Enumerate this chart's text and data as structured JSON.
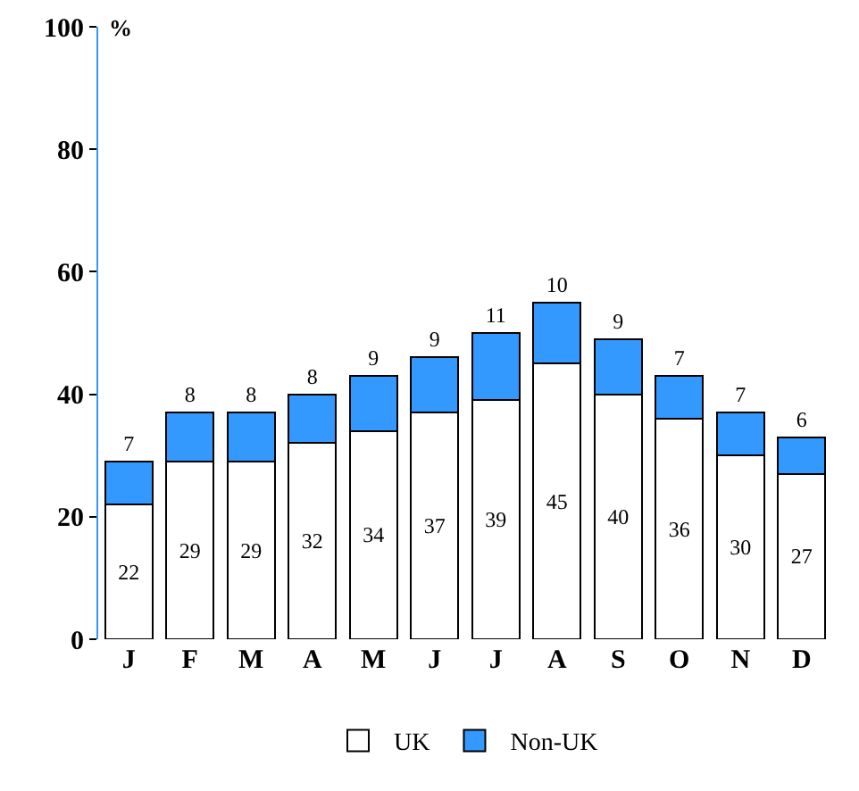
{
  "chart_data": {
    "type": "bar",
    "stacked": true,
    "ylabel": "%",
    "categories": [
      "J",
      "F",
      "M",
      "A",
      "M",
      "J",
      "J",
      "A",
      "S",
      "O",
      "N",
      "D"
    ],
    "series": [
      {
        "name": "UK",
        "color": "#ffffff",
        "values": [
          22,
          29,
          29,
          32,
          34,
          37,
          39,
          45,
          40,
          36,
          30,
          27
        ]
      },
      {
        "name": "Non-UK",
        "color": "#3399ff",
        "values": [
          7,
          8,
          8,
          8,
          9,
          9,
          11,
          10,
          9,
          7,
          7,
          6
        ]
      }
    ],
    "ylim": [
      0,
      100
    ],
    "yticks": [
      0,
      20,
      40,
      60,
      80,
      100
    ],
    "grid": false,
    "legend": "bottom",
    "data_labels": true
  }
}
